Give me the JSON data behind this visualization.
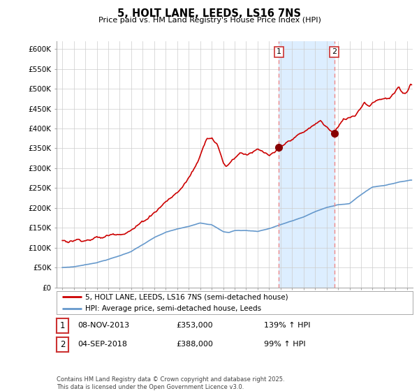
{
  "title": "5, HOLT LANE, LEEDS, LS16 7NS",
  "subtitle": "Price paid vs. HM Land Registry's House Price Index (HPI)",
  "legend_label_property": "5, HOLT LANE, LEEDS, LS16 7NS (semi-detached house)",
  "legend_label_hpi": "HPI: Average price, semi-detached house, Leeds",
  "footnote": "Contains HM Land Registry data © Crown copyright and database right 2025.\nThis data is licensed under the Open Government Licence v3.0.",
  "sale1_label": "1",
  "sale1_date": "08-NOV-2013",
  "sale1_price": "£353,000",
  "sale1_hpi": "139% ↑ HPI",
  "sale2_label": "2",
  "sale2_date": "04-SEP-2018",
  "sale2_price": "£388,000",
  "sale2_hpi": "99% ↑ HPI",
  "sale1_year": 2013.85,
  "sale2_year": 2018.67,
  "sale1_price_val": 353000,
  "sale2_price_val": 388000,
  "property_color": "#cc0000",
  "hpi_color": "#6699cc",
  "dashed_line_color": "#ee8888",
  "shade_color": "#ddeeff",
  "ylim_min": 0,
  "ylim_max": 620000,
  "xlim_min": 1994.5,
  "xlim_max": 2025.5,
  "ytick_values": [
    0,
    50000,
    100000,
    150000,
    200000,
    250000,
    300000,
    350000,
    400000,
    450000,
    500000,
    550000,
    600000
  ],
  "ytick_labels": [
    "£0",
    "£50K",
    "£100K",
    "£150K",
    "£200K",
    "£250K",
    "£300K",
    "£350K",
    "£400K",
    "£450K",
    "£500K",
    "£550K",
    "£600K"
  ],
  "xtick_values": [
    1995,
    1996,
    1997,
    1998,
    1999,
    2000,
    2001,
    2002,
    2003,
    2004,
    2005,
    2006,
    2007,
    2008,
    2009,
    2010,
    2011,
    2012,
    2013,
    2014,
    2015,
    2016,
    2017,
    2018,
    2019,
    2020,
    2021,
    2022,
    2023,
    2024,
    2025
  ],
  "background_color": "#ffffff",
  "plot_bg_color": "#ffffff",
  "grid_color": "#cccccc"
}
